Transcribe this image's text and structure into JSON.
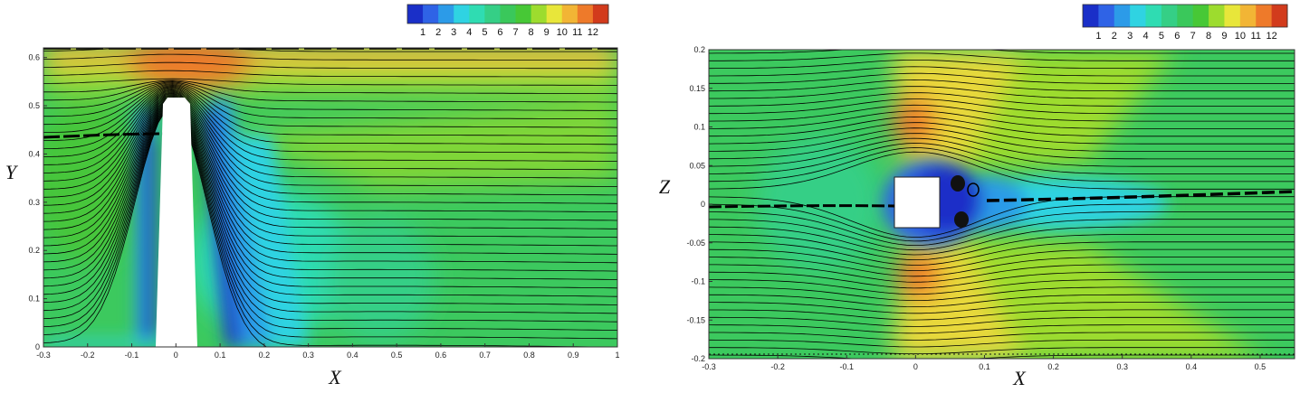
{
  "chart_data": [
    {
      "type": "heatmap",
      "title": "",
      "xlabel": "X",
      "ylabel": "Y",
      "xlim": [
        -0.3,
        1.0
      ],
      "ylim": [
        0,
        0.62
      ],
      "xticks": [
        "-0.3",
        "-0.2",
        "-0.1",
        "0",
        "0.1",
        "0.2",
        "0.3",
        "0.4",
        "0.5",
        "0.6",
        "0.7",
        "0.8",
        "0.9",
        "1"
      ],
      "yticks": [
        "0",
        "0.1",
        "0.2",
        "0.3",
        "0.4",
        "0.5",
        "0.6"
      ],
      "colorbar": {
        "labels": [
          "1",
          "2",
          "3",
          "4",
          "5",
          "6",
          "7",
          "8",
          "9",
          "10",
          "11",
          "12"
        ],
        "range": [
          1,
          12
        ],
        "colors": [
          "#1a2fc8",
          "#2f63e6",
          "#2c9be8",
          "#2fd3e2",
          "#2fdcb2",
          "#35cf86",
          "#3ac85b",
          "#47c836",
          "#9ddc2e",
          "#e8e63a",
          "#f2b535",
          "#ee7a2a",
          "#d23b1c"
        ]
      },
      "obstacle": {
        "x": [
          -0.07,
          0.05
        ],
        "y": [
          0,
          0.5
        ]
      },
      "streamlines": 36,
      "grid": false
    },
    {
      "type": "heatmap",
      "title": "",
      "xlabel": "X",
      "ylabel": "Z",
      "xlim": [
        -0.3,
        0.55
      ],
      "ylim": [
        -0.2,
        0.2
      ],
      "xticks": [
        "-0.3",
        "-0.2",
        "-0.1",
        "0",
        "0.1",
        "0.2",
        "0.3",
        "0.4",
        "0.5"
      ],
      "yticks": [
        "-0.2",
        "-0.15",
        "-0.1",
        "-0.05",
        "0",
        "0.05",
        "0.1",
        "0.15",
        "0.2"
      ],
      "colorbar": {
        "labels": [
          "1",
          "2",
          "3",
          "4",
          "5",
          "6",
          "7",
          "8",
          "9",
          "10",
          "11",
          "12"
        ],
        "range": [
          1,
          12
        ],
        "colors": [
          "#1a2fc8",
          "#2f63e6",
          "#2c9be8",
          "#2fd3e2",
          "#2fdcb2",
          "#35cf86",
          "#3ac85b",
          "#47c836",
          "#9ddc2e",
          "#e8e63a",
          "#f2b535",
          "#ee7a2a",
          "#d23b1c"
        ]
      },
      "obstacle": {
        "x": [
          -0.035,
          0.035
        ],
        "y": [
          -0.02,
          0.04
        ]
      },
      "streamlines": 40,
      "grid": false
    }
  ]
}
